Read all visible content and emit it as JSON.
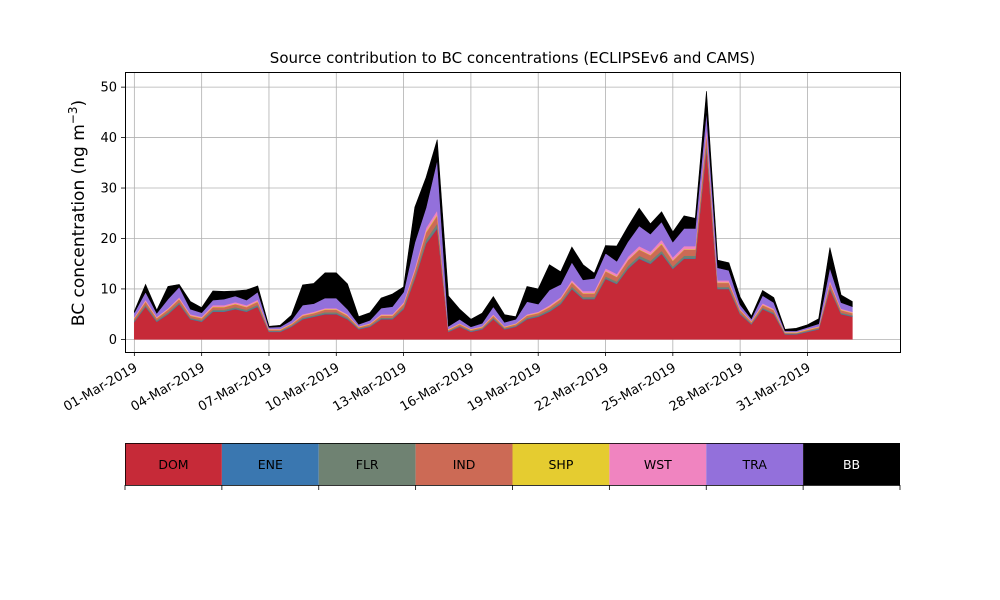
{
  "chart_data": {
    "type": "area",
    "stacked": true,
    "title": "Source contribution to BC concentrations (ECLIPSEv6 and CAMS)",
    "xlabel": "",
    "ylabel": "BC concentration (ng m",
    "ylabel_sup": "−3",
    "ylabel_close": ")",
    "ylim": [
      -2.5,
      53
    ],
    "xlim": [
      "2019-02-28T14:00",
      "2019-04-04T03:00"
    ],
    "yticks": [
      0,
      10,
      20,
      30,
      40,
      50
    ],
    "xticks": [
      "2019-03-01",
      "2019-03-04",
      "2019-03-07",
      "2019-03-10",
      "2019-03-13",
      "2019-03-16",
      "2019-03-19",
      "2019-03-22",
      "2019-03-25",
      "2019-03-28",
      "2019-03-31"
    ],
    "xtick_labels": [
      "01-Mar-2019",
      "04-Mar-2019",
      "07-Mar-2019",
      "10-Mar-2019",
      "13-Mar-2019",
      "16-Mar-2019",
      "19-Mar-2019",
      "22-Mar-2019",
      "25-Mar-2019",
      "28-Mar-2019",
      "31-Mar-2019"
    ],
    "grid": true,
    "legend_placement": "below",
    "x": [
      "2019-03-01",
      "2019-03-01T12:00",
      "2019-03-02",
      "2019-03-02T12:00",
      "2019-03-03",
      "2019-03-03T12:00",
      "2019-03-04",
      "2019-03-04T12:00",
      "2019-03-05",
      "2019-03-05T12:00",
      "2019-03-06",
      "2019-03-06T12:00",
      "2019-03-07",
      "2019-03-07T12:00",
      "2019-03-08",
      "2019-03-08T12:00",
      "2019-03-09",
      "2019-03-09T12:00",
      "2019-03-10",
      "2019-03-10T12:00",
      "2019-03-11",
      "2019-03-11T12:00",
      "2019-03-12",
      "2019-03-12T12:00",
      "2019-03-13",
      "2019-03-13T12:00",
      "2019-03-14",
      "2019-03-14T12:00",
      "2019-03-15",
      "2019-03-15T12:00",
      "2019-03-16",
      "2019-03-16T12:00",
      "2019-03-17",
      "2019-03-17T12:00",
      "2019-03-18",
      "2019-03-18T12:00",
      "2019-03-19",
      "2019-03-19T12:00",
      "2019-03-20",
      "2019-03-20T12:00",
      "2019-03-21",
      "2019-03-21T12:00",
      "2019-03-22",
      "2019-03-22T12:00",
      "2019-03-23",
      "2019-03-23T12:00",
      "2019-03-24",
      "2019-03-24T12:00",
      "2019-03-25",
      "2019-03-25T12:00",
      "2019-03-26",
      "2019-03-26T12:00",
      "2019-03-27",
      "2019-03-27T12:00",
      "2019-03-28",
      "2019-03-28T12:00",
      "2019-03-29",
      "2019-03-29T12:00",
      "2019-03-30",
      "2019-03-30T12:00",
      "2019-03-31",
      "2019-03-31T12:00",
      "2019-04-01",
      "2019-04-01T12:00",
      "2019-04-02"
    ],
    "series": [
      {
        "name": "DOM",
        "color": "#c62a38",
        "values": [
          3.5,
          6.5,
          3.5,
          5.0,
          7.0,
          4.0,
          3.5,
          5.5,
          5.5,
          6.0,
          5.5,
          6.5,
          1.5,
          1.5,
          2.5,
          4.0,
          4.5,
          5.0,
          5.0,
          4.0,
          2.0,
          2.5,
          4.0,
          4.0,
          6.0,
          12.0,
          19.0,
          22.0,
          1.5,
          2.5,
          1.5,
          2.0,
          4.0,
          2.0,
          2.5,
          4.0,
          4.5,
          5.5,
          7.0,
          10.0,
          8.0,
          8.0,
          12.0,
          11.0,
          14.0,
          16.0,
          15.0,
          17.0,
          14.0,
          16.0,
          16.0,
          38.0,
          10.0,
          10.0,
          5.0,
          3.0,
          6.0,
          5.0,
          1.0,
          1.0,
          1.5,
          2.0,
          10.0,
          5.0,
          4.5
        ]
      },
      {
        "name": "ENE",
        "color": "#3a77b0",
        "values": [
          0.1,
          0.1,
          0.1,
          0.1,
          0.1,
          0.1,
          0.1,
          0.1,
          0.1,
          0.1,
          0.1,
          0.1,
          0.1,
          0.1,
          0.1,
          0.1,
          0.1,
          0.1,
          0.1,
          0.1,
          0.1,
          0.1,
          0.1,
          0.1,
          0.1,
          0.1,
          0.1,
          0.2,
          0.1,
          0.1,
          0.1,
          0.1,
          0.1,
          0.1,
          0.1,
          0.1,
          0.1,
          0.1,
          0.1,
          0.1,
          0.1,
          0.1,
          0.1,
          0.1,
          0.1,
          0.1,
          0.1,
          0.1,
          0.1,
          0.1,
          0.1,
          0.2,
          0.1,
          0.1,
          0.1,
          0.1,
          0.1,
          0.1,
          0.1,
          0.1,
          0.1,
          0.1,
          0.1,
          0.1,
          0.1
        ]
      },
      {
        "name": "FLR",
        "color": "#6f8272",
        "values": [
          0.2,
          0.3,
          0.2,
          0.3,
          0.3,
          0.2,
          0.2,
          0.3,
          0.3,
          0.3,
          0.3,
          0.3,
          0.1,
          0.1,
          0.1,
          0.2,
          0.2,
          0.3,
          0.3,
          0.2,
          0.1,
          0.1,
          0.2,
          0.2,
          0.3,
          0.5,
          0.7,
          0.8,
          0.1,
          0.1,
          0.1,
          0.1,
          0.2,
          0.1,
          0.1,
          0.2,
          0.2,
          0.3,
          0.3,
          0.4,
          0.3,
          0.3,
          0.4,
          0.4,
          0.5,
          0.5,
          0.5,
          0.5,
          0.4,
          0.5,
          0.5,
          0.8,
          0.3,
          0.3,
          0.2,
          0.1,
          0.2,
          0.2,
          0.1,
          0.1,
          0.1,
          0.1,
          0.3,
          0.2,
          0.2
        ]
      },
      {
        "name": "IND",
        "color": "#cc6a55",
        "values": [
          0.4,
          0.6,
          0.4,
          0.5,
          0.6,
          0.4,
          0.4,
          0.5,
          0.5,
          0.6,
          0.5,
          0.6,
          0.2,
          0.2,
          0.3,
          0.4,
          0.4,
          0.5,
          0.5,
          0.4,
          0.2,
          0.3,
          0.4,
          0.4,
          0.6,
          1.0,
          1.4,
          1.6,
          0.2,
          0.3,
          0.2,
          0.2,
          0.4,
          0.2,
          0.3,
          0.4,
          0.4,
          0.5,
          0.6,
          0.8,
          0.7,
          0.7,
          1.0,
          0.9,
          1.1,
          1.2,
          1.1,
          1.3,
          1.1,
          1.2,
          1.2,
          2.0,
          0.8,
          0.8,
          0.5,
          0.3,
          0.5,
          0.5,
          0.1,
          0.1,
          0.2,
          0.2,
          0.8,
          0.5,
          0.4
        ]
      },
      {
        "name": "SHP",
        "color": "#e5cc30",
        "values": [
          0.1,
          0.1,
          0.1,
          0.1,
          0.1,
          0.1,
          0.1,
          0.1,
          0.1,
          0.1,
          0.1,
          0.1,
          0.1,
          0.1,
          0.1,
          0.1,
          0.1,
          0.1,
          0.1,
          0.1,
          0.1,
          0.1,
          0.1,
          0.1,
          0.1,
          0.1,
          0.2,
          0.2,
          0.1,
          0.1,
          0.1,
          0.1,
          0.1,
          0.1,
          0.1,
          0.1,
          0.1,
          0.1,
          0.1,
          0.1,
          0.1,
          0.1,
          0.1,
          0.1,
          0.1,
          0.1,
          0.1,
          0.2,
          0.1,
          0.1,
          0.1,
          0.2,
          0.1,
          0.1,
          0.1,
          0.1,
          0.1,
          0.1,
          0.1,
          0.1,
          0.1,
          0.1,
          0.1,
          0.1,
          0.1
        ]
      },
      {
        "name": "WST",
        "color": "#f084c0",
        "values": [
          0.2,
          0.3,
          0.2,
          0.2,
          0.3,
          0.2,
          0.2,
          0.3,
          0.3,
          0.3,
          0.3,
          0.3,
          0.1,
          0.1,
          0.1,
          0.2,
          0.2,
          0.2,
          0.2,
          0.2,
          0.1,
          0.1,
          0.2,
          0.2,
          0.3,
          0.5,
          0.7,
          0.8,
          0.1,
          0.1,
          0.1,
          0.1,
          0.2,
          0.1,
          0.1,
          0.2,
          0.2,
          0.3,
          0.3,
          0.4,
          0.4,
          0.4,
          0.5,
          0.5,
          0.6,
          0.6,
          0.6,
          0.7,
          0.6,
          0.6,
          0.6,
          1.0,
          0.4,
          0.4,
          0.2,
          0.1,
          0.3,
          0.2,
          0.1,
          0.1,
          0.1,
          0.1,
          0.4,
          0.2,
          0.2
        ]
      },
      {
        "name": "TRA",
        "color": "#9370db",
        "values": [
          0.8,
          1.5,
          0.7,
          1.8,
          2.0,
          1.0,
          0.8,
          1.0,
          1.2,
          1.2,
          1.0,
          1.5,
          0.3,
          0.4,
          0.6,
          1.8,
          1.6,
          2.0,
          2.0,
          1.0,
          0.4,
          0.6,
          1.2,
          1.5,
          2.0,
          5.0,
          4.0,
          10.0,
          0.5,
          0.8,
          0.4,
          0.6,
          1.5,
          0.8,
          0.8,
          2.5,
          1.5,
          3.0,
          2.5,
          3.5,
          2.2,
          2.5,
          3.0,
          2.5,
          3.0,
          4.0,
          3.5,
          3.5,
          3.0,
          3.5,
          3.5,
          3.0,
          2.5,
          2.0,
          0.8,
          0.4,
          1.5,
          1.2,
          0.2,
          0.2,
          0.3,
          0.5,
          2.5,
          1.2,
          1.0
        ]
      },
      {
        "name": "BB",
        "color": "#000000",
        "values": [
          0.3,
          1.5,
          0.6,
          2.5,
          0.5,
          1.5,
          1.0,
          1.8,
          1.5,
          1.0,
          2.0,
          1.2,
          0.2,
          0.3,
          1.0,
          4.0,
          4.0,
          5.0,
          5.0,
          5.0,
          1.5,
          1.5,
          2.0,
          2.5,
          1.0,
          7.0,
          6.0,
          4.0,
          6.0,
          2.0,
          1.5,
          2.0,
          2.0,
          1.5,
          0.5,
          3.0,
          3.0,
          5.0,
          2.5,
          3.0,
          3.0,
          1.0,
          1.5,
          3.0,
          3.0,
          3.5,
          2.0,
          2.0,
          2.0,
          2.5,
          2.0,
          4.0,
          1.5,
          1.5,
          1.5,
          0.5,
          1.0,
          1.0,
          0.3,
          0.5,
          0.5,
          1.0,
          4.0,
          1.5,
          1.0
        ]
      }
    ],
    "legend": [
      {
        "label": "DOM",
        "color": "#c62a38",
        "text_color": "#000000"
      },
      {
        "label": "ENE",
        "color": "#3a77b0",
        "text_color": "#000000"
      },
      {
        "label": "FLR",
        "color": "#6f8272",
        "text_color": "#000000"
      },
      {
        "label": "IND",
        "color": "#cc6a55",
        "text_color": "#000000"
      },
      {
        "label": "SHP",
        "color": "#e5cc30",
        "text_color": "#000000"
      },
      {
        "label": "WST",
        "color": "#f084c0",
        "text_color": "#000000"
      },
      {
        "label": "TRA",
        "color": "#9370db",
        "text_color": "#000000"
      },
      {
        "label": "BB",
        "color": "#000000",
        "text_color": "#ffffff"
      }
    ]
  }
}
